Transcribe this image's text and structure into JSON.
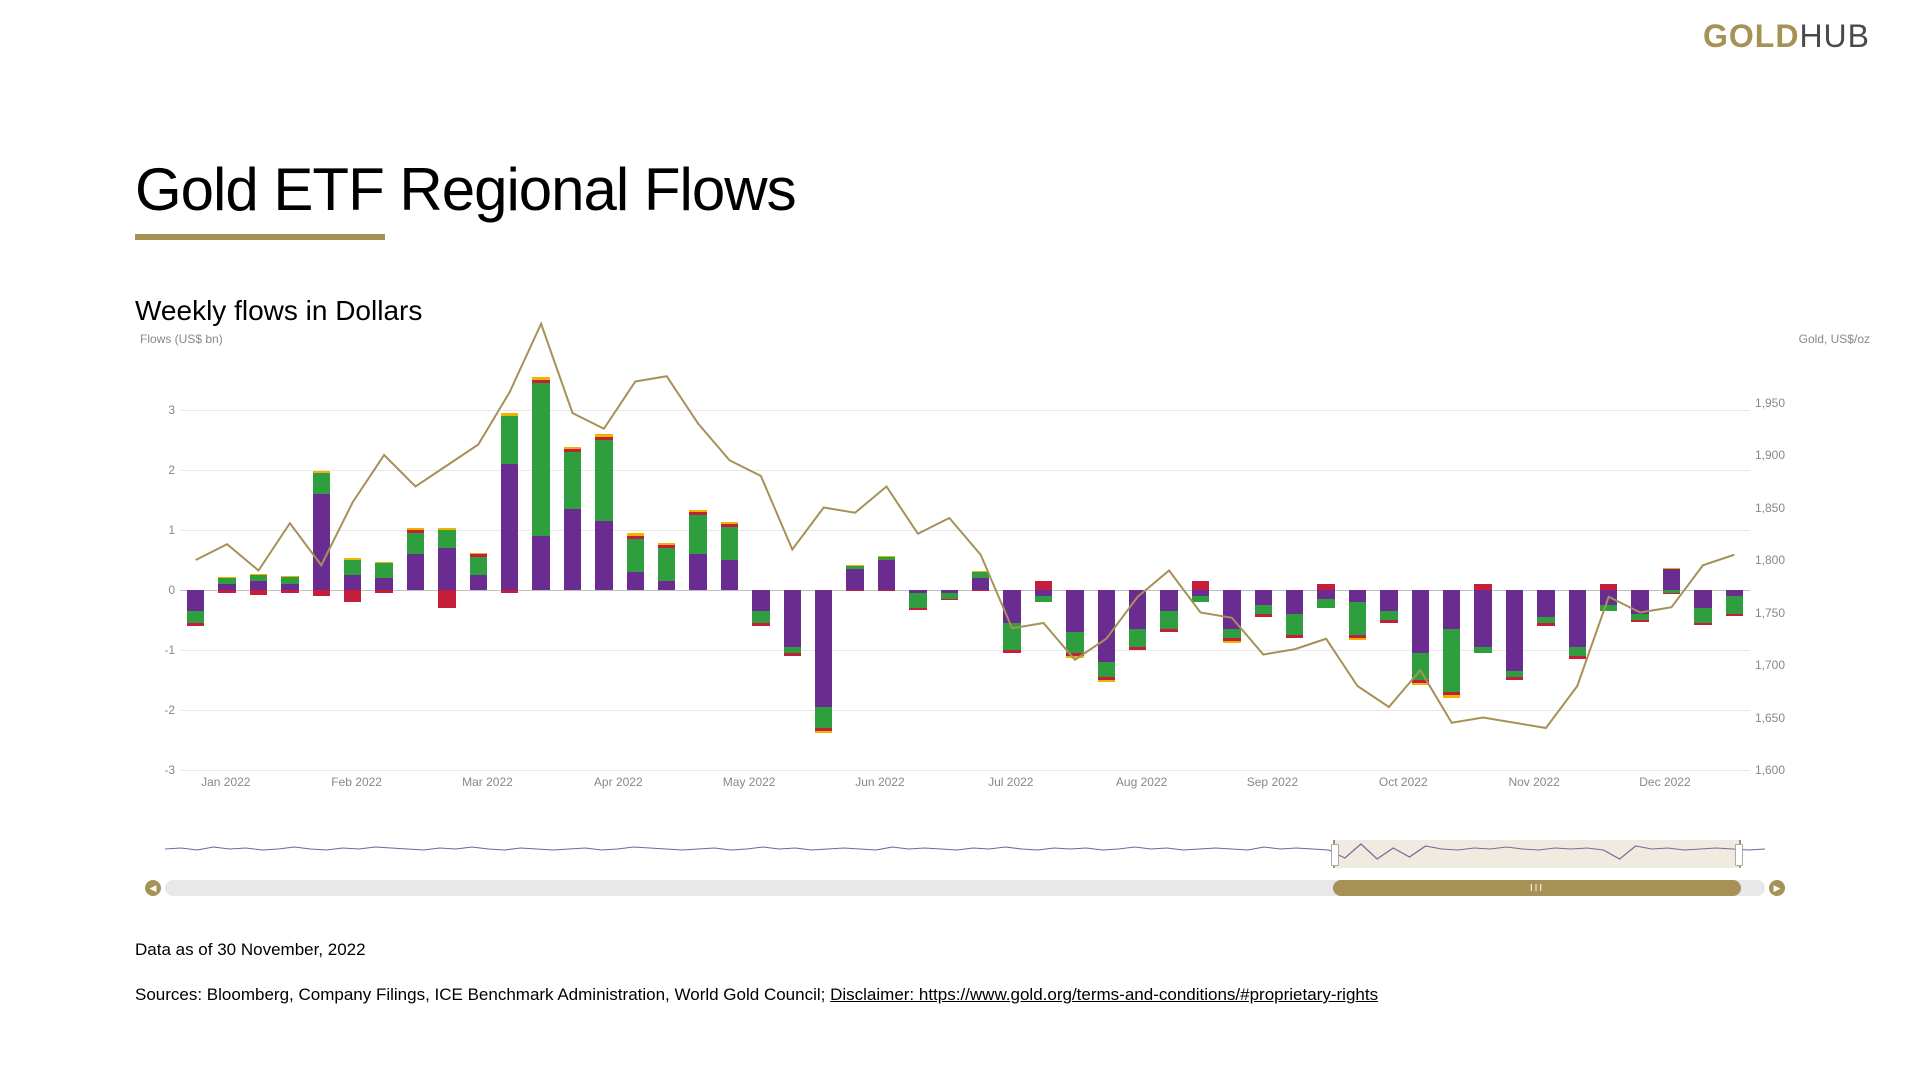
{
  "logo": {
    "gold": "GOLD",
    "hub": "HUB"
  },
  "title": "Gold ETF Regional Flows",
  "subtitle": "Weekly flows in Dollars",
  "ylabel_left": "Flows (US$ bn)",
  "ylabel_right": "Gold, US$/oz",
  "asof": "Data as of 30 November, 2022",
  "sources_prefix": "Sources: Bloomberg, Company Filings, ICE Benchmark Administration, World Gold Council; ",
  "disclaimer_text": "Disclaimer: https://www.gold.org/terms-and-conditions/#proprietary-rights",
  "disclaimer_href": "https://www.gold.org/terms-and-conditions/#proprietary-rights",
  "chart": {
    "type": "stacked-bar-with-line",
    "y_left": {
      "min": -3,
      "max": 4,
      "ticks": [
        -3,
        -2,
        -1,
        0,
        1,
        2,
        3
      ]
    },
    "y_right": {
      "min": 1600,
      "max": 2000,
      "ticks": [
        1600,
        1650,
        1700,
        1750,
        1800,
        1850,
        1900,
        1950
      ]
    },
    "x_labels": [
      "Jan 2022",
      "Feb 2022",
      "Mar 2022",
      "Apr 2022",
      "May 2022",
      "Jun 2022",
      "Jul 2022",
      "Aug 2022",
      "Sep 2022",
      "Oct 2022",
      "Nov 2022",
      "Dec 2022"
    ],
    "colors": {
      "na": "#6b2c91",
      "eu": "#2e9e3f",
      "asia": "#c41e3a",
      "other": "#f0b400",
      "gold_line": "#a69157",
      "grid": "#e8e8e8",
      "background": "#ffffff"
    },
    "bar_width_ratio": 0.55,
    "line_width": 2,
    "weeks": [
      {
        "na": -0.35,
        "eu": -0.2,
        "asia": -0.05,
        "other": 0.0,
        "gold": 1800
      },
      {
        "na": 0.1,
        "eu": 0.1,
        "asia": -0.05,
        "other": 0.02,
        "gold": 1815
      },
      {
        "na": 0.15,
        "eu": 0.1,
        "asia": -0.08,
        "other": 0.02,
        "gold": 1790
      },
      {
        "na": 0.1,
        "eu": 0.12,
        "asia": -0.05,
        "other": 0.02,
        "gold": 1835
      },
      {
        "na": 1.6,
        "eu": 0.35,
        "asia": -0.1,
        "other": 0.03,
        "gold": 1795
      },
      {
        "na": 0.25,
        "eu": 0.25,
        "asia": -0.2,
        "other": 0.03,
        "gold": 1855
      },
      {
        "na": 0.2,
        "eu": 0.25,
        "asia": -0.05,
        "other": 0.02,
        "gold": 1900
      },
      {
        "na": 0.6,
        "eu": 0.35,
        "asia": 0.05,
        "other": 0.03,
        "gold": 1870
      },
      {
        "na": 0.7,
        "eu": 0.3,
        "asia": -0.3,
        "other": 0.03,
        "gold": 1890
      },
      {
        "na": 0.25,
        "eu": 0.3,
        "asia": 0.05,
        "other": 0.02,
        "gold": 1910
      },
      {
        "na": 2.1,
        "eu": 0.8,
        "asia": -0.05,
        "other": 0.05,
        "gold": 1960
      },
      {
        "na": 0.9,
        "eu": 2.55,
        "asia": 0.05,
        "other": 0.05,
        "gold": 2025
      },
      {
        "na": 1.35,
        "eu": 0.95,
        "asia": 0.05,
        "other": 0.03,
        "gold": 1940
      },
      {
        "na": 1.15,
        "eu": 1.35,
        "asia": 0.05,
        "other": 0.05,
        "gold": 1925
      },
      {
        "na": 0.3,
        "eu": 0.55,
        "asia": 0.05,
        "other": 0.05,
        "gold": 1970
      },
      {
        "na": 0.15,
        "eu": 0.55,
        "asia": 0.05,
        "other": 0.03,
        "gold": 1975
      },
      {
        "na": 0.6,
        "eu": 0.65,
        "asia": 0.05,
        "other": 0.03,
        "gold": 1930
      },
      {
        "na": 0.5,
        "eu": 0.55,
        "asia": 0.05,
        "other": 0.03,
        "gold": 1895
      },
      {
        "na": -0.35,
        "eu": -0.2,
        "asia": -0.05,
        "other": 0.0,
        "gold": 1880
      },
      {
        "na": -0.95,
        "eu": -0.1,
        "asia": -0.05,
        "other": 0.0,
        "gold": 1810
      },
      {
        "na": -1.95,
        "eu": -0.35,
        "asia": -0.05,
        "other": -0.03,
        "gold": 1850
      },
      {
        "na": 0.35,
        "eu": 0.05,
        "asia": -0.02,
        "other": 0.02,
        "gold": 1845
      },
      {
        "na": 0.5,
        "eu": 0.05,
        "asia": -0.02,
        "other": 0.02,
        "gold": 1870
      },
      {
        "na": -0.05,
        "eu": -0.25,
        "asia": -0.03,
        "other": 0.0,
        "gold": 1825
      },
      {
        "na": -0.05,
        "eu": -0.1,
        "asia": -0.02,
        "other": 0.0,
        "gold": 1840
      },
      {
        "na": 0.2,
        "eu": 0.1,
        "asia": -0.02,
        "other": 0.02,
        "gold": 1805
      },
      {
        "na": -0.55,
        "eu": -0.45,
        "asia": -0.05,
        "other": 0.0,
        "gold": 1735
      },
      {
        "na": -0.1,
        "eu": -0.1,
        "asia": 0.15,
        "other": 0.0,
        "gold": 1740
      },
      {
        "na": -0.7,
        "eu": -0.35,
        "asia": -0.05,
        "other": -0.03,
        "gold": 1705
      },
      {
        "na": -1.2,
        "eu": -0.25,
        "asia": -0.05,
        "other": -0.03,
        "gold": 1725
      },
      {
        "na": -0.65,
        "eu": -0.3,
        "asia": -0.05,
        "other": 0.0,
        "gold": 1765
      },
      {
        "na": -0.35,
        "eu": -0.3,
        "asia": -0.05,
        "other": 0.0,
        "gold": 1790
      },
      {
        "na": -0.1,
        "eu": -0.1,
        "asia": 0.15,
        "other": 0.0,
        "gold": 1750
      },
      {
        "na": -0.65,
        "eu": -0.15,
        "asia": -0.05,
        "other": -0.03,
        "gold": 1745
      },
      {
        "na": -0.25,
        "eu": -0.15,
        "asia": -0.05,
        "other": 0.0,
        "gold": 1710
      },
      {
        "na": -0.4,
        "eu": -0.35,
        "asia": -0.05,
        "other": 0.0,
        "gold": 1715
      },
      {
        "na": -0.15,
        "eu": -0.15,
        "asia": 0.1,
        "other": 0.0,
        "gold": 1725
      },
      {
        "na": -0.2,
        "eu": -0.55,
        "asia": -0.05,
        "other": -0.03,
        "gold": 1680
      },
      {
        "na": -0.35,
        "eu": -0.15,
        "asia": -0.05,
        "other": 0.0,
        "gold": 1660
      },
      {
        "na": -1.05,
        "eu": -0.45,
        "asia": -0.05,
        "other": -0.03,
        "gold": 1695
      },
      {
        "na": -0.65,
        "eu": -1.05,
        "asia": -0.05,
        "other": -0.05,
        "gold": 1645
      },
      {
        "na": -0.95,
        "eu": -0.1,
        "asia": 0.1,
        "other": 0.0,
        "gold": 1650
      },
      {
        "na": -1.35,
        "eu": -0.1,
        "asia": -0.05,
        "other": 0.0,
        "gold": 1645
      },
      {
        "na": -0.45,
        "eu": -0.1,
        "asia": -0.05,
        "other": 0.0,
        "gold": 1640
      },
      {
        "na": -0.95,
        "eu": -0.15,
        "asia": -0.05,
        "other": 0.0,
        "gold": 1680
      },
      {
        "na": -0.25,
        "eu": -0.1,
        "asia": 0.1,
        "other": 0.0,
        "gold": 1765
      },
      {
        "na": -0.4,
        "eu": -0.1,
        "asia": -0.03,
        "other": 0.0,
        "gold": 1750
      },
      {
        "na": 0.35,
        "eu": -0.05,
        "asia": -0.02,
        "other": 0.02,
        "gold": 1755
      },
      {
        "na": -0.3,
        "eu": -0.25,
        "asia": -0.03,
        "other": 0.0,
        "gold": 1795
      },
      {
        "na": -0.1,
        "eu": -0.3,
        "asia": -0.03,
        "other": 0.0,
        "gold": 1805
      }
    ]
  },
  "navigator": {
    "points": [
      5,
      6,
      4,
      7,
      5,
      6,
      4,
      5,
      7,
      5,
      4,
      6,
      5,
      7,
      6,
      5,
      4,
      6,
      5,
      7,
      5,
      4,
      6,
      5,
      4,
      5,
      6,
      4,
      5,
      7,
      6,
      5,
      4,
      5,
      6,
      4,
      5,
      7,
      5,
      6,
      4,
      5,
      6,
      5,
      4,
      7,
      5,
      6,
      5,
      4,
      6,
      5,
      7,
      5,
      4,
      6,
      5,
      6,
      4,
      5,
      7,
      5,
      6,
      4,
      5,
      6,
      5,
      4,
      7,
      5,
      6,
      5,
      4,
      -4,
      10,
      -5,
      6,
      -3,
      8,
      5,
      4,
      6,
      5,
      7,
      5,
      4,
      6,
      5,
      6,
      4,
      -5,
      8,
      5,
      6,
      4,
      5,
      6,
      5,
      4,
      5
    ],
    "selection": {
      "start": 0.73,
      "end": 0.985
    },
    "line_color": "#7b5fa3"
  },
  "scrollbar": {
    "thumb_start": 0.73,
    "thumb_end": 0.985,
    "grip": "III"
  }
}
